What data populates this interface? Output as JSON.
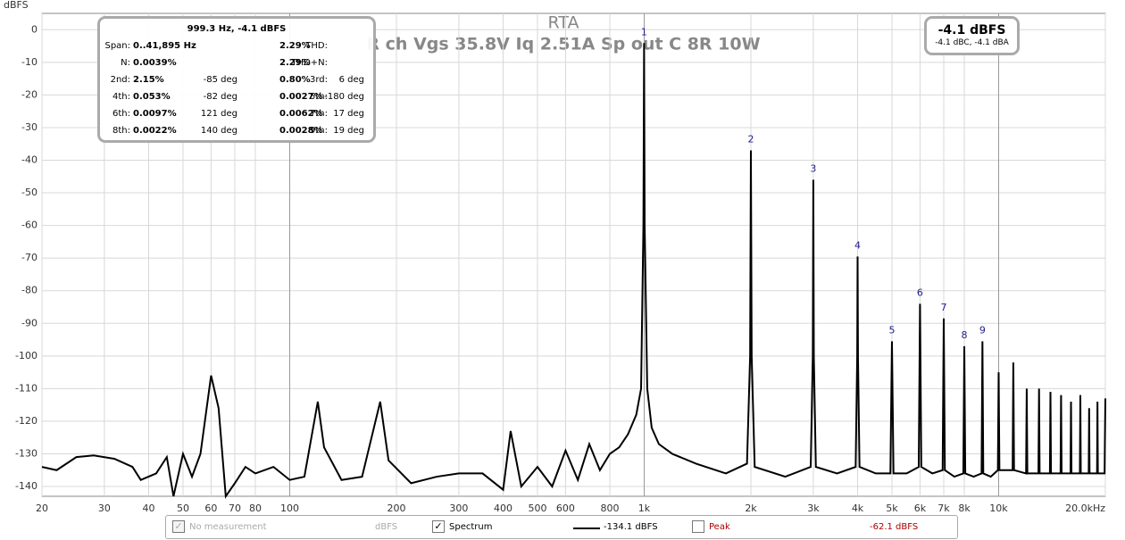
{
  "chart_data": {
    "type": "line",
    "title": "RTA",
    "subtitle": "R ch Vgs 35.8V Iq 2.51A Sp out C 8R 10W",
    "y_label": "dBFS",
    "x_scale": "log",
    "grid": true,
    "xlim": [
      20,
      20000
    ],
    "ylim": [
      -143,
      5
    ],
    "xticks": [
      20,
      30,
      40,
      50,
      60,
      70,
      80,
      100,
      200,
      300,
      400,
      500,
      600,
      800,
      {
        "value": 1000,
        "label": "1k"
      },
      {
        "value": 2000,
        "label": "2k"
      },
      {
        "value": 3000,
        "label": "3k"
      },
      {
        "value": 4000,
        "label": "4k"
      },
      {
        "value": 5000,
        "label": "5k"
      },
      {
        "value": 6000,
        "label": "6k"
      },
      {
        "value": 7000,
        "label": "7k"
      },
      {
        "value": 8000,
        "label": "8k"
      },
      {
        "value": 10000,
        "label": "10k"
      },
      {
        "value": 20000,
        "label": "20.0kHz"
      }
    ],
    "yticks": [
      0,
      -10,
      -20,
      -30,
      -40,
      -50,
      -60,
      -70,
      -80,
      -90,
      -100,
      -110,
      -120,
      -130,
      -140
    ],
    "x": [
      20,
      22,
      25,
      28,
      32,
      36,
      38,
      42,
      45,
      47,
      50,
      53,
      56,
      60,
      63,
      66,
      70,
      75,
      80,
      90,
      100,
      110,
      120,
      125,
      140,
      160,
      180,
      190,
      220,
      260,
      300,
      350,
      400,
      420,
      450,
      500,
      550,
      600,
      650,
      700,
      750,
      800,
      850,
      900,
      950,
      980,
      995,
      999.3,
      1003,
      1020,
      1050,
      1100,
      1200,
      1400,
      1700,
      1950,
      1990,
      2000,
      2010,
      2050,
      2500,
      2950,
      2990,
      3000,
      3010,
      3050,
      3500,
      3950,
      3990,
      4000,
      4010,
      4050,
      4500,
      4950,
      5000,
      5050,
      5500,
      5950,
      6000,
      6050,
      6500,
      6950,
      7000,
      7050,
      7500,
      7950,
      8000,
      8050,
      8500,
      8950,
      9000,
      9050,
      9500,
      9950,
      10000,
      10050,
      10950,
      11000,
      11050,
      11950,
      12000,
      12050,
      12950,
      13000,
      13050,
      13950,
      14000,
      14050,
      14950,
      15000,
      15050,
      15950,
      16000,
      16050,
      16950,
      17000,
      17050,
      17950,
      18000,
      18050,
      18950,
      19000,
      19050,
      19900,
      20000
    ],
    "series": [
      {
        "name": "Spectrum",
        "color": "#000000",
        "values": [
          -134,
          -135,
          -131,
          -130.5,
          -131.5,
          -134,
          -138,
          -136,
          -131,
          -143,
          -130,
          -137,
          -130,
          -106,
          -116,
          -143,
          -139,
          -134,
          -136,
          -134,
          -138,
          -137,
          -114,
          -128,
          -138,
          -137,
          -114,
          -132,
          -139,
          -137,
          -136,
          -136,
          -141,
          -123,
          -140,
          -134,
          -140,
          -129,
          -138,
          -127,
          -135,
          -130,
          -128,
          -124,
          -118,
          -110,
          -60,
          -4.1,
          -60,
          -110,
          -122,
          -127,
          -130,
          -133,
          -136,
          -133,
          -100,
          -37,
          -100,
          -134,
          -137,
          -134,
          -100,
          -46,
          -100,
          -134,
          -136,
          -134,
          -100,
          -69.5,
          -100,
          -134,
          -136,
          -136,
          -95.5,
          -136,
          -136,
          -134,
          -84,
          -134,
          -136,
          -135,
          -88.5,
          -135,
          -137,
          -136,
          -97,
          -136,
          -137,
          -136,
          -95.5,
          -136,
          -137,
          -135,
          -105,
          -135,
          -135,
          -102,
          -135,
          -136,
          -110,
          -136,
          -136,
          -110,
          -136,
          -136,
          -111,
          -136,
          -136,
          -112,
          -136,
          -136,
          -114,
          -136,
          -136,
          -112,
          -136,
          -136,
          -116,
          -136,
          -136,
          -114,
          -136,
          -136,
          -113
        ]
      }
    ],
    "annotations": [
      {
        "text": "1",
        "x": 999.3,
        "y": -4.1
      },
      {
        "text": "2",
        "x": 2000,
        "y": -37
      },
      {
        "text": "3",
        "x": 3000,
        "y": -46
      },
      {
        "text": "4",
        "x": 4000,
        "y": -69.5
      },
      {
        "text": "5",
        "x": 5000,
        "y": -95.5
      },
      {
        "text": "6",
        "x": 6000,
        "y": -84
      },
      {
        "text": "7",
        "x": 7000,
        "y": -88.5
      },
      {
        "text": "8",
        "x": 8000,
        "y": -97
      },
      {
        "text": "9",
        "x": 9000,
        "y": -95.5
      }
    ]
  },
  "info_box": {
    "header": "999.3 Hz, -4.1 dBFS",
    "rows": [
      [
        "Span:",
        "0..41,895 Hz",
        "THD:",
        "2.29%"
      ],
      [
        "N:",
        "0.0039%",
        "THD+N:",
        "2.29%"
      ],
      [
        "2nd:",
        "2.15%",
        "-85 deg",
        "3rd:",
        "0.80%",
        "6 deg"
      ],
      [
        "4th:",
        "0.053%",
        "-82 deg",
        "5th:",
        "0.0027%",
        "-180 deg"
      ],
      [
        "6th:",
        "0.0097%",
        "121 deg",
        "7th:",
        "0.0062%",
        "17 deg"
      ],
      [
        "8th:",
        "0.0022%",
        "140 deg",
        "9th:",
        "0.0028%",
        "19 deg"
      ]
    ]
  },
  "readout": {
    "main": "-4.1 dBFS",
    "sub": "-4.1 dBC, -4.1 dBA"
  },
  "controls": {
    "no_measurement": {
      "label": "No measurement",
      "unit": "dBFS"
    },
    "spectrum": {
      "label": "Spectrum",
      "value": "-134.1 dBFS"
    },
    "peak": {
      "label": "Peak",
      "value": "-62.1 dBFS"
    }
  }
}
